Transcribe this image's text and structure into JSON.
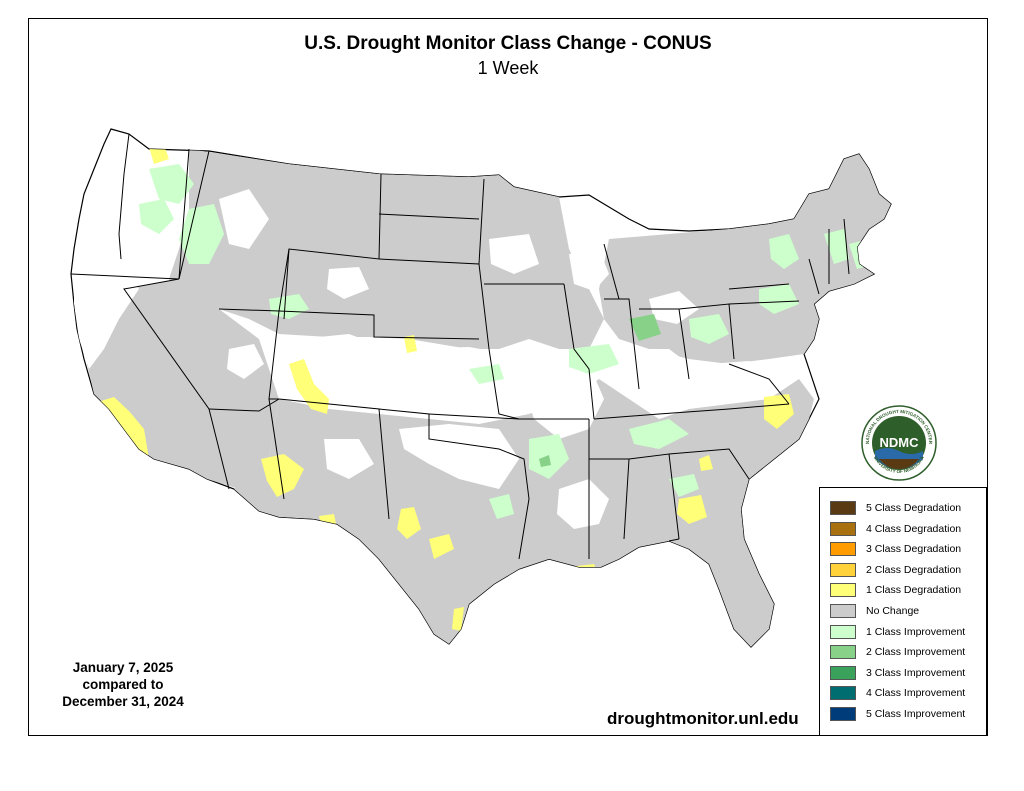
{
  "title": "U.S. Drought Monitor Class Change - CONUS",
  "subtitle": "1 Week",
  "date": {
    "line1": "January 7, 2025",
    "line2": "compared to",
    "line3": "December 31, 2024"
  },
  "website": "droughtmonitor.unl.edu",
  "logo": {
    "text": "NDMC",
    "ring_text_top": "NATIONAL DROUGHT MITIGATION CENTER",
    "ring_text_bottom": "UNIVERSITY OF NEBRASKA",
    "colors": {
      "ring": "#ffffff",
      "disc": "#2e5e2a",
      "text": "#ffffff"
    }
  },
  "legend": [
    {
      "label": "5 Class Degradation",
      "color": "#5a3a12"
    },
    {
      "label": "4 Class Degradation",
      "color": "#a9700f"
    },
    {
      "label": "3 Class Degradation",
      "color": "#ff9c00"
    },
    {
      "label": "2 Class Degradation",
      "color": "#ffd23c"
    },
    {
      "label": "1 Class Degradation",
      "color": "#ffff78"
    },
    {
      "label": "No Change",
      "color": "#cccccc"
    },
    {
      "label": "1 Class Improvement",
      "color": "#ccffcc"
    },
    {
      "label": "2 Class Improvement",
      "color": "#88d188"
    },
    {
      "label": "3 Class Improvement",
      "color": "#3aa25a"
    },
    {
      "label": "4 Class Improvement",
      "color": "#006d70"
    },
    {
      "label": "5 Class Improvement",
      "color": "#003c7a"
    }
  ],
  "map_colors": {
    "no_change": "#cccccc",
    "improve1": "#ccffcc",
    "improve2": "#88d188",
    "degrade1": "#ffff78",
    "border": "#000000",
    "water": "#ffffff"
  }
}
